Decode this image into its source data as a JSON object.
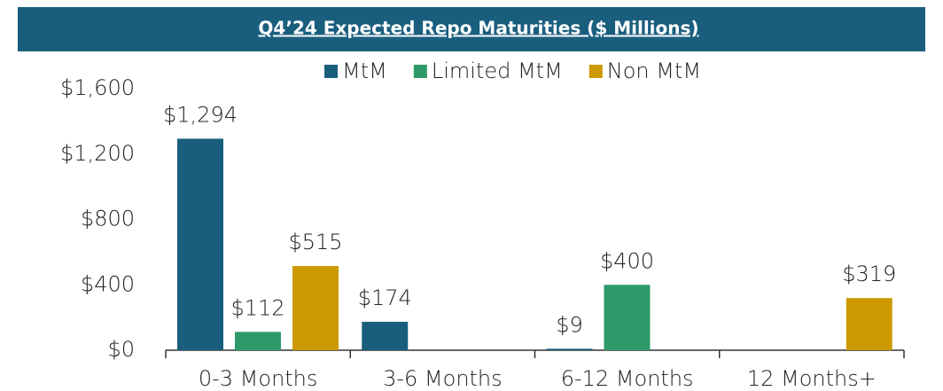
{
  "chart_data": {
    "type": "bar",
    "title": "Q4’24 Expected Repo Maturities ($ Millions)",
    "categories": [
      "0-3 Months",
      "3-6 Months",
      "6-12 Months",
      "12 Months+"
    ],
    "series": [
      {
        "name": "MtM",
        "color": "#1a5e7e",
        "values": [
          1294,
          174,
          9,
          null
        ],
        "value_labels": [
          "$1,294",
          "$174",
          "$9",
          null
        ]
      },
      {
        "name": "Limited MtM",
        "color": "#2e9a6a",
        "values": [
          112,
          null,
          400,
          null
        ],
        "value_labels": [
          "$112",
          null,
          "$400",
          null
        ]
      },
      {
        "name": "Non MtM",
        "color": "#cc9a00",
        "values": [
          515,
          null,
          null,
          319
        ],
        "value_labels": [
          "$515",
          null,
          null,
          "$319"
        ]
      }
    ],
    "ylim": [
      0,
      1600
    ],
    "yticks": [
      {
        "value": 0,
        "label": "$0"
      },
      {
        "value": 400,
        "label": "$400"
      },
      {
        "value": 800,
        "label": "$800"
      },
      {
        "value": 1200,
        "label": "$1,200"
      },
      {
        "value": 1600,
        "label": "$1,600"
      }
    ],
    "legend": "top"
  }
}
